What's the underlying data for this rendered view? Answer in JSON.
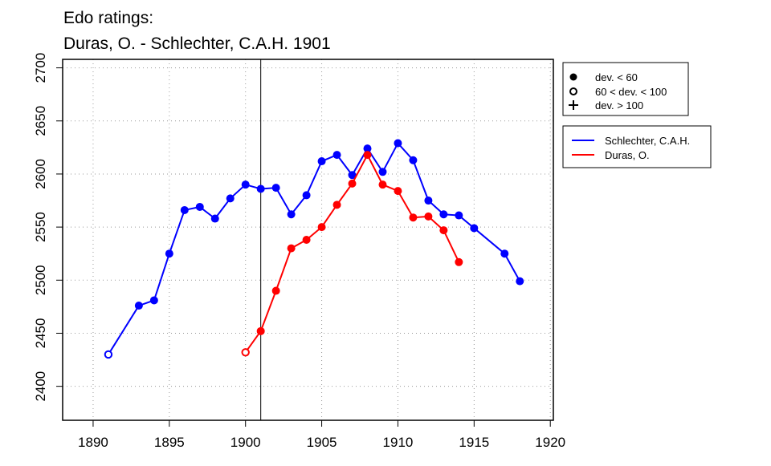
{
  "chart_data": {
    "type": "line",
    "title": "Edo ratings:",
    "subtitle": "Duras, O. - Schlechter, C.A.H. 1901",
    "xlabel": "",
    "ylabel": "",
    "xlim": [
      1888,
      1920.2
    ],
    "ylim": [
      2368,
      2708
    ],
    "xticks": [
      1890,
      1895,
      1900,
      1905,
      1910,
      1915,
      1920
    ],
    "yticks": [
      2400,
      2450,
      2500,
      2550,
      2600,
      2650,
      2700
    ],
    "grid": true,
    "vline": 1901,
    "legend_markers": {
      "placement": "right-top",
      "items": [
        {
          "symbol": "filled-circle",
          "label": "dev. < 60"
        },
        {
          "symbol": "open-circle",
          "label": "60 < dev. < 100"
        },
        {
          "symbol": "plus",
          "label": "dev. > 100"
        }
      ]
    },
    "legend_series": {
      "placement": "right"
    },
    "series": [
      {
        "name": "Schlechter, C.A.H.",
        "color": "#0000ff",
        "x": [
          1891,
          1893,
          1894,
          1895,
          1896,
          1897,
          1898,
          1899,
          1900,
          1901,
          1902,
          1903,
          1904,
          1905,
          1906,
          1907,
          1908,
          1909,
          1910,
          1911,
          1912,
          1913,
          1914,
          1915,
          1917,
          1918
        ],
        "y": [
          2430,
          2476,
          2481,
          2525,
          2566,
          2569,
          2558,
          2577,
          2590,
          2586,
          2587,
          2562,
          2580,
          2612,
          2618,
          2599,
          2624,
          2602,
          2629,
          2613,
          2575,
          2562,
          2561,
          2549,
          2525,
          2499
        ],
        "markers": [
          "open",
          "filled",
          "filled",
          "filled",
          "filled",
          "filled",
          "filled",
          "filled",
          "filled",
          "filled",
          "filled",
          "filled",
          "filled",
          "filled",
          "filled",
          "filled",
          "filled",
          "filled",
          "filled",
          "filled",
          "filled",
          "filled",
          "filled",
          "filled",
          "filled",
          "filled"
        ]
      },
      {
        "name": "Duras, O.",
        "color": "#ff0000",
        "x": [
          1900,
          1901,
          1902,
          1903,
          1904,
          1905,
          1906,
          1907,
          1908,
          1909,
          1910,
          1911,
          1912,
          1913,
          1914
        ],
        "y": [
          2432,
          2452,
          2490,
          2530,
          2538,
          2550,
          2571,
          2591,
          2618,
          2590,
          2584,
          2559,
          2560,
          2547,
          2517
        ],
        "markers": [
          "open",
          "filled",
          "filled",
          "filled",
          "filled",
          "filled",
          "filled",
          "filled",
          "filled",
          "filled",
          "filled",
          "filled",
          "filled",
          "filled",
          "filled"
        ]
      }
    ]
  }
}
